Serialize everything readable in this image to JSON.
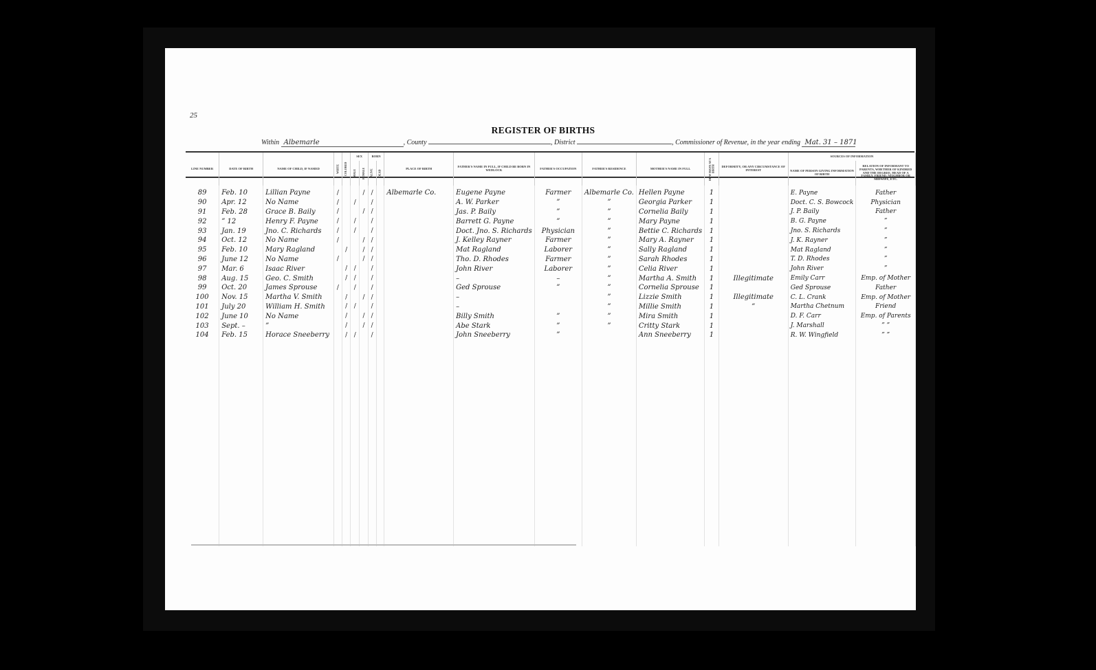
{
  "document": {
    "corner_mark": "25",
    "title": "REGISTER OF BIRTHS",
    "within_label": "Within",
    "county_value": "Albemarle",
    "county_label": ", County",
    "district_label": ", District",
    "commissioner_label": ", Commissioner of Revenue, in the year ending",
    "year_value": "Mat. 31 – 1871"
  },
  "headers": {
    "line_number": "Line Number",
    "date_of_birth": "Date of Birth",
    "name_of_child": "Name of Child, If Named",
    "white": "White",
    "colored": "Colored",
    "sex": "Sex",
    "male": "Male",
    "female": "Female",
    "born": "Born",
    "alive": "Alive",
    "dead": "Dead",
    "place_of_birth": "Place of Birth",
    "father_name": "Father's Name in Full, If Child Be Born in Wedlock",
    "father_occupation": "Father's Occupation",
    "father_residence": "Father's Residence",
    "mother_name": "Mother's Name in Full",
    "how_many": "How Many at a Birth",
    "deformity": "Deformity, or Any Circumstance of Interest",
    "sources": "Sources of Information",
    "informant_name": "Name of Person Giving Information of Birth",
    "informant_relation": "Relation of Informant to Parents, Whether of Kindred and the Degree, Head of a Family, Friend, Neighbor or Midwife, etc."
  },
  "rows": [
    {
      "line": "89",
      "date": "Feb. 10",
      "name": "Lillian Payne",
      "race": "white",
      "sex": "female",
      "born": "alive",
      "place": "Albemarle Co.",
      "father": "Eugene Payne",
      "occupation": "Farmer",
      "residence": "Albemarle Co.",
      "mother": "Hellen Payne",
      "how_many": "1",
      "deformity": "",
      "informant": "E. Payne",
      "relation": "Father"
    },
    {
      "line": "90",
      "date": "Apr. 12",
      "name": "No Name",
      "race": "white",
      "sex": "male",
      "born": "alive",
      "place": "",
      "father": "A. W. Parker",
      "occupation": "”",
      "residence": "”",
      "mother": "Georgia Parker",
      "how_many": "1",
      "deformity": "",
      "informant": "Doct. C. S. Bowcock",
      "relation": "Physician"
    },
    {
      "line": "91",
      "date": "Feb. 28",
      "name": "Grace B. Baily",
      "race": "white",
      "sex": "female",
      "born": "alive",
      "place": "",
      "father": "Jas. P. Baily",
      "occupation": "”",
      "residence": "”",
      "mother": "Cornelia Baily",
      "how_many": "1",
      "deformity": "",
      "informant": "J. P. Baily",
      "relation": "Father"
    },
    {
      "line": "92",
      "date": "” 12",
      "name": "Henry F. Payne",
      "race": "white",
      "sex": "male",
      "born": "alive",
      "place": "",
      "father": "Barrett G. Payne",
      "occupation": "”",
      "residence": "”",
      "mother": "Mary Payne",
      "how_many": "1",
      "deformity": "",
      "informant": "B. G. Payne",
      "relation": "”"
    },
    {
      "line": "93",
      "date": "Jan. 19",
      "name": "Jno. C. Richards",
      "race": "white",
      "sex": "male",
      "born": "alive",
      "place": "",
      "father": "Doct. Jno. S. Richards",
      "occupation": "Physician",
      "residence": "”",
      "mother": "Bettie C. Richards",
      "how_many": "1",
      "deformity": "",
      "informant": "Jno. S. Richards",
      "relation": "”"
    },
    {
      "line": "94",
      "date": "Oct. 12",
      "name": "No Name",
      "race": "white",
      "sex": "female",
      "born": "alive",
      "place": "",
      "father": "J. Kelley Rayner",
      "occupation": "Farmer",
      "residence": "”",
      "mother": "Mary A. Rayner",
      "how_many": "1",
      "deformity": "",
      "informant": "J. K. Rayner",
      "relation": "”"
    },
    {
      "line": "95",
      "date": "Feb. 10",
      "name": "Mary Ragland",
      "race": "colored",
      "sex": "female",
      "born": "alive",
      "place": "",
      "father": "Mat Ragland",
      "occupation": "Laborer",
      "residence": "”",
      "mother": "Sally Ragland",
      "how_many": "1",
      "deformity": "",
      "informant": "Mat Ragland",
      "relation": "”"
    },
    {
      "line": "96",
      "date": "June 12",
      "name": "No Name",
      "race": "white",
      "sex": "female",
      "born": "alive",
      "place": "",
      "father": "Tho. D. Rhodes",
      "occupation": "Farmer",
      "residence": "”",
      "mother": "Sarah Rhodes",
      "how_many": "1",
      "deformity": "",
      "informant": "T. D. Rhodes",
      "relation": "”"
    },
    {
      "line": "97",
      "date": "Mar. 6",
      "name": "Isaac River",
      "race": "colored",
      "sex": "male",
      "born": "alive",
      "place": "",
      "father": "John River",
      "occupation": "Laborer",
      "residence": "”",
      "mother": "Celia River",
      "how_many": "1",
      "deformity": "",
      "informant": "John River",
      "relation": "”"
    },
    {
      "line": "98",
      "date": "Aug. 15",
      "name": "Geo. C. Smith",
      "race": "colored",
      "sex": "male",
      "born": "alive",
      "place": "",
      "father": "–",
      "occupation": "–",
      "residence": "”",
      "mother": "Martha A. Smith",
      "how_many": "1",
      "deformity": "Illegitimate",
      "informant": "Emily Carr",
      "relation": "Emp. of Mother"
    },
    {
      "line": "99",
      "date": "Oct. 20",
      "name": "James Sprouse",
      "race": "white",
      "sex": "male",
      "born": "alive",
      "place": "",
      "father": "Ged Sprouse",
      "occupation": "”",
      "residence": "”",
      "mother": "Cornelia Sprouse",
      "how_many": "1",
      "deformity": "",
      "informant": "Ged Sprouse",
      "relation": "Father"
    },
    {
      "line": "100",
      "date": "Nov. 15",
      "name": "Martha V. Smith",
      "race": "colored",
      "sex": "female",
      "born": "alive",
      "place": "",
      "father": "–",
      "occupation": "",
      "residence": "”",
      "mother": "Lizzie Smith",
      "how_many": "1",
      "deformity": "Illegitimate",
      "informant": "C. L. Crank",
      "relation": "Emp. of Mother"
    },
    {
      "line": "101",
      "date": "July 20",
      "name": "William H. Smith",
      "race": "colored",
      "sex": "male",
      "born": "alive",
      "place": "",
      "father": "–",
      "occupation": "",
      "residence": "”",
      "mother": "Millie Smith",
      "how_many": "1",
      "deformity": "”",
      "informant": "Martha Chetnum",
      "relation": "Friend"
    },
    {
      "line": "102",
      "date": "June 10",
      "name": "No Name",
      "race": "colored",
      "sex": "female",
      "born": "alive",
      "place": "",
      "father": "Billy Smith",
      "occupation": "”",
      "residence": "”",
      "mother": "Mira Smith",
      "how_many": "1",
      "deformity": "",
      "informant": "D. F. Carr",
      "relation": "Emp. of Parents"
    },
    {
      "line": "103",
      "date": "Sept. –",
      "name": "”",
      "race": "colored",
      "sex": "female",
      "born": "alive",
      "place": "",
      "father": "Abe Stark",
      "occupation": "”",
      "residence": "”",
      "mother": "Critty Stark",
      "how_many": "1",
      "deformity": "",
      "informant": "J. Marshall",
      "relation": "” ”"
    },
    {
      "line": "104",
      "date": "Feb. 15",
      "name": "Horace Sneeberry",
      "race": "colored",
      "sex": "male",
      "born": "alive",
      "place": "",
      "father": "John Sneeberry",
      "occupation": "”",
      "residence": "",
      "mother": "Ann Sneeberry",
      "how_many": "1",
      "deformity": "",
      "informant": "R. W. Wingfield",
      "relation": "” ”"
    }
  ],
  "tick_mark": "/",
  "colors": {
    "background": "#000000",
    "paper": "#fdfdfd",
    "ink": "#1a1a1a"
  }
}
